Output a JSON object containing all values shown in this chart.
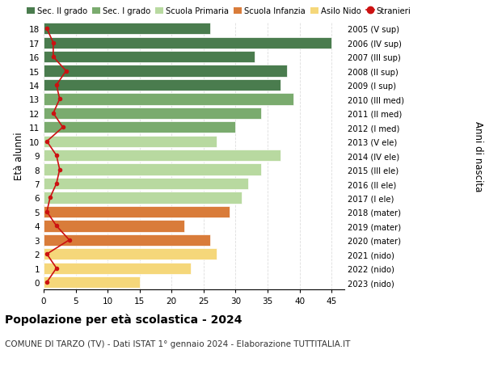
{
  "ages": [
    18,
    17,
    16,
    15,
    14,
    13,
    12,
    11,
    10,
    9,
    8,
    7,
    6,
    5,
    4,
    3,
    2,
    1,
    0
  ],
  "years_labels": [
    "2005 (V sup)",
    "2006 (IV sup)",
    "2007 (III sup)",
    "2008 (II sup)",
    "2009 (I sup)",
    "2010 (III med)",
    "2011 (II med)",
    "2012 (I med)",
    "2013 (V ele)",
    "2014 (IV ele)",
    "2015 (III ele)",
    "2016 (II ele)",
    "2017 (I ele)",
    "2018 (mater)",
    "2019 (mater)",
    "2020 (mater)",
    "2021 (nido)",
    "2022 (nido)",
    "2023 (nido)"
  ],
  "bar_values": [
    26,
    45,
    33,
    38,
    37,
    39,
    34,
    30,
    27,
    37,
    34,
    32,
    31,
    29,
    22,
    26,
    27,
    23,
    15
  ],
  "bar_colors": [
    "#4a7c4e",
    "#4a7c4e",
    "#4a7c4e",
    "#4a7c4e",
    "#4a7c4e",
    "#7aab6e",
    "#7aab6e",
    "#7aab6e",
    "#b8d9a0",
    "#b8d9a0",
    "#b8d9a0",
    "#b8d9a0",
    "#b8d9a0",
    "#d97c3a",
    "#d97c3a",
    "#d97c3a",
    "#f5d77a",
    "#f5d77a",
    "#f5d77a"
  ],
  "stranieri_values": [
    0.5,
    1.5,
    1.5,
    3.5,
    2,
    2.5,
    1.5,
    3,
    0.5,
    2,
    2.5,
    2,
    1,
    0.5,
    2,
    4,
    0.5,
    2,
    0.5
  ],
  "legend_labels": [
    "Sec. II grado",
    "Sec. I grado",
    "Scuola Primaria",
    "Scuola Infanzia",
    "Asilo Nido",
    "Stranieri"
  ],
  "legend_colors": [
    "#4a7c4e",
    "#7aab6e",
    "#b8d9a0",
    "#d97c3a",
    "#f5d77a",
    "#cc1111"
  ],
  "xlabel_right": "Anni di nascita",
  "ylabel": "Età alunni",
  "title_bold": "Popolazione per età scolastica - 2024",
  "subtitle": "COMUNE DI TARZO (TV) - Dati ISTAT 1° gennaio 2024 - Elaborazione TUTTITALIA.IT",
  "xlim": [
    0,
    47
  ],
  "stranieri_color": "#cc1111",
  "background_color": "#ffffff",
  "grid_color": "#dddddd"
}
